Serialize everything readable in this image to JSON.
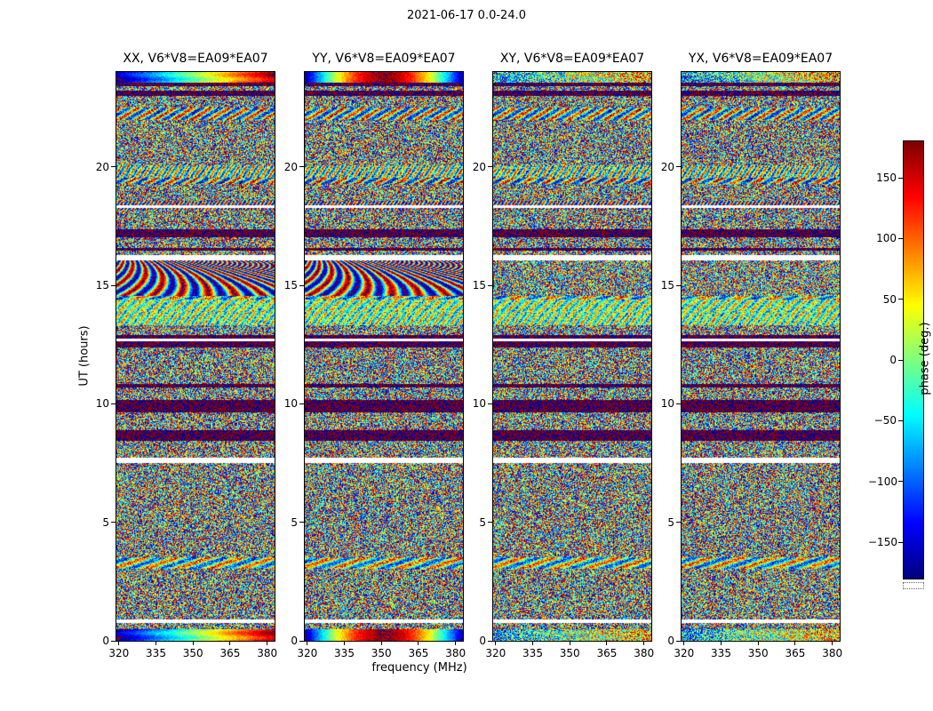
{
  "chart_data": {
    "type": "heatmap",
    "title": "2021-06-17 0.0-24.0",
    "panels": [
      {
        "label": "XX",
        "title": "XX, V6*V8=EA09*EA07"
      },
      {
        "label": "YY",
        "title": "YY, V6*V8=EA09*EA07"
      },
      {
        "label": "XY",
        "title": "XY, V6*V8=EA09*EA07"
      },
      {
        "label": "YX",
        "title": "YX, V6*V8=EA09*EA07"
      }
    ],
    "xlabel": "frequency (MHz)",
    "ylabel": "UT (hours)",
    "xlim": [
      319,
      383
    ],
    "ylim": [
      0,
      24
    ],
    "xticks": [
      320,
      335,
      350,
      365,
      380
    ],
    "yticks": [
      0,
      5,
      10,
      15,
      20
    ],
    "colorbar": {
      "label": "phase (deg.)",
      "ticks": [
        150,
        100,
        50,
        0,
        -50,
        -100,
        -150
      ],
      "vmin": -180,
      "vmax": 180,
      "colormap": "jet"
    },
    "content": "Noise-like interferometric phase waterfalls (phase vs frequency 320-383 MHz vs UT 0-24 h) with horizontal band structure, white dropout rows, and smooth coherent phase-gradient bands near UT 24, UT 15-16 and UT 0 in the XX and YY panels"
  }
}
